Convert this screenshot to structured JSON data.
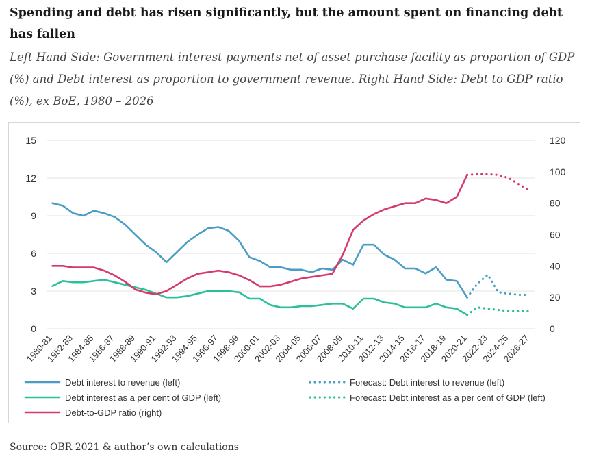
{
  "title": "Spending and debt has risen significantly, but the amount spent on financing debt has fallen",
  "subtitle": "Left Hand Side: Government interest payments net of asset purchase facility as proportion of GDP (%) and Debt interest as proportion to government revenue. Right Hand Side: Debt to GDP ratio (%), ex BoE, 1980 – 2026",
  "source": "Source: OBR 2021 & author’s own calculations",
  "colors": {
    "blue": "#4a9dc4",
    "teal": "#2bbf9a",
    "crimson": "#d43a6a",
    "grid": "#e3e3e3"
  },
  "chart_data": {
    "type": "line",
    "x_start_year": 1980,
    "x_end_year": 2027,
    "x_tick_labels": [
      "1980-81",
      "1982-83",
      "1984-85",
      "1986-87",
      "1988-89",
      "1990-91",
      "1992-93",
      "1994-95",
      "1996-97",
      "1998-99",
      "2000-01",
      "2002-03",
      "2004-05",
      "2006-07",
      "2008-09",
      "2010-11",
      "2012-13",
      "2014-15",
      "2016-17",
      "2018-19",
      "2020-21",
      "2022-23",
      "2024-25",
      "2026-27"
    ],
    "left_axis": {
      "range": [
        0,
        15
      ],
      "ticks": [
        "0",
        "3",
        "6",
        "9",
        "12",
        "15"
      ]
    },
    "right_axis": {
      "range": [
        0,
        120
      ],
      "ticks": [
        "0",
        "20",
        "40",
        "60",
        "80",
        "100",
        "120"
      ]
    },
    "grid": true,
    "legend_position": "bottom",
    "series": [
      {
        "name": "Debt interest to revenue (left)",
        "axis": "left",
        "color": "#4a9dc4",
        "dash": false,
        "x": [
          1980,
          1981,
          1982,
          1983,
          1984,
          1985,
          1986,
          1987,
          1988,
          1989,
          1990,
          1991,
          1992,
          1993,
          1994,
          1995,
          1996,
          1997,
          1998,
          1999,
          2000,
          2001,
          2002,
          2003,
          2004,
          2005,
          2006,
          2007,
          2008,
          2009,
          2010,
          2011,
          2012,
          2013,
          2014,
          2015,
          2016,
          2017,
          2018,
          2019,
          2020
        ],
        "values": [
          10.0,
          9.8,
          9.2,
          9.0,
          9.4,
          9.2,
          8.9,
          8.3,
          7.5,
          6.7,
          6.1,
          5.3,
          6.1,
          6.9,
          7.5,
          8.0,
          8.1,
          7.8,
          7.0,
          5.7,
          5.4,
          4.9,
          4.9,
          4.7,
          4.7,
          4.5,
          4.8,
          4.7,
          5.5,
          5.1,
          6.7,
          6.7,
          5.9,
          5.5,
          4.8,
          4.8,
          4.4,
          4.9,
          3.9,
          3.8,
          2.5
        ]
      },
      {
        "name": "Forecast: Debt interest to revenue (left)",
        "axis": "left",
        "color": "#4a9dc4",
        "dash": true,
        "x": [
          2020,
          2021,
          2022,
          2023,
          2024,
          2025,
          2026
        ],
        "values": [
          2.5,
          3.6,
          4.3,
          2.9,
          2.8,
          2.7,
          2.7
        ]
      },
      {
        "name": "Debt interest as a per cent of GDP (left)",
        "axis": "left",
        "color": "#2bbf9a",
        "dash": false,
        "x": [
          1980,
          1981,
          1982,
          1983,
          1984,
          1985,
          1986,
          1987,
          1988,
          1989,
          1990,
          1991,
          1992,
          1993,
          1994,
          1995,
          1996,
          1997,
          1998,
          1999,
          2000,
          2001,
          2002,
          2003,
          2004,
          2005,
          2006,
          2007,
          2008,
          2009,
          2010,
          2011,
          2012,
          2013,
          2014,
          2015,
          2016,
          2017,
          2018,
          2019,
          2020
        ],
        "values": [
          3.4,
          3.8,
          3.7,
          3.7,
          3.8,
          3.9,
          3.7,
          3.5,
          3.3,
          3.1,
          2.8,
          2.5,
          2.5,
          2.6,
          2.8,
          3.0,
          3.0,
          3.0,
          2.9,
          2.4,
          2.4,
          1.9,
          1.7,
          1.7,
          1.8,
          1.8,
          1.9,
          2.0,
          2.0,
          1.6,
          2.4,
          2.4,
          2.1,
          2.0,
          1.7,
          1.7,
          1.7,
          2.0,
          1.7,
          1.6,
          1.1
        ]
      },
      {
        "name": "Forecast: Debt interest as a per cent of GDP (left)",
        "axis": "left",
        "color": "#2bbf9a",
        "dash": true,
        "x": [
          2020,
          2021,
          2022,
          2023,
          2024,
          2025,
          2026
        ],
        "values": [
          1.1,
          1.7,
          1.6,
          1.5,
          1.4,
          1.4,
          1.4
        ]
      },
      {
        "name": "Debt-to-GDP ratio (right)",
        "axis": "right",
        "color": "#d43a6a",
        "dash": false,
        "x": [
          1980,
          1981,
          1982,
          1983,
          1984,
          1985,
          1986,
          1987,
          1988,
          1989,
          1990,
          1991,
          1992,
          1993,
          1994,
          1995,
          1996,
          1997,
          1998,
          1999,
          2000,
          2001,
          2002,
          2003,
          2004,
          2005,
          2006,
          2007,
          2008,
          2009,
          2010,
          2011,
          2012,
          2013,
          2014,
          2015,
          2016,
          2017,
          2018,
          2019,
          2020
        ],
        "values": [
          40,
          40,
          39,
          39,
          39,
          37,
          34,
          30,
          25,
          23,
          22,
          24,
          28,
          32,
          35,
          36,
          37,
          36,
          34,
          31,
          27,
          27,
          28,
          30,
          32,
          33,
          34,
          35,
          47,
          63,
          69,
          73,
          76,
          78,
          80,
          80,
          83,
          82,
          80,
          84,
          98
        ]
      },
      {
        "name": "Debt-to-GDP ratio (right)",
        "axis": "right",
        "color": "#d43a6a",
        "dash": true,
        "legend": false,
        "x": [
          2020,
          2021,
          2022,
          2023,
          2024,
          2025,
          2026
        ],
        "values": [
          98,
          98.5,
          98.5,
          98,
          96,
          92,
          88
        ]
      }
    ]
  }
}
